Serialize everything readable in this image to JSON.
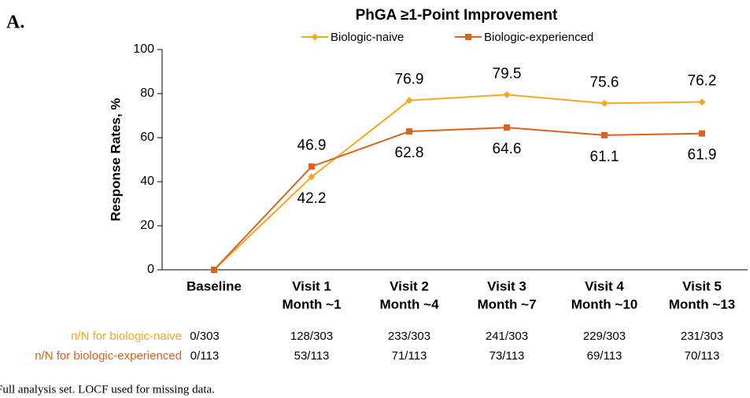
{
  "panel_label": "A.",
  "chart_data": {
    "type": "line",
    "title": "PhGA ≥1-Point Improvement",
    "y_label": "Response Rates, %",
    "categories": [
      [
        "Baseline"
      ],
      [
        "Visit 1",
        "Month ~1"
      ],
      [
        "Visit 2",
        "Month ~4"
      ],
      [
        "Visit 3",
        "Month ~7"
      ],
      [
        "Visit 4",
        "Month ~10"
      ],
      [
        "Visit 5",
        "Month ~13"
      ]
    ],
    "series": [
      {
        "name": "Biologic-naive",
        "color": "#f5a623",
        "marker": "diamond",
        "values": [
          0,
          42.2,
          76.9,
          79.5,
          75.6,
          76.2
        ],
        "value_labels": [
          null,
          "42.2",
          "76.9",
          "79.5",
          "75.6",
          "76.2"
        ]
      },
      {
        "name": "Biologic-experienced",
        "color": "#d9621c",
        "marker": "square",
        "values": [
          0,
          46.9,
          62.8,
          64.6,
          61.1,
          61.9
        ],
        "value_labels": [
          null,
          "46.9",
          "62.8",
          "64.6",
          "61.1",
          "61.9"
        ]
      }
    ],
    "ylim": [
      0,
      100
    ],
    "yticks": [
      0,
      20,
      40,
      60,
      80,
      100
    ],
    "legend": "top",
    "count_rows": [
      {
        "label": "n/N for biologic-naive",
        "color": "#f5a623",
        "values": [
          "0/303",
          "128/303",
          "233/303",
          "241/303",
          "229/303",
          "231/303"
        ]
      },
      {
        "label": "n/N for biologic-experienced",
        "color": "#d9621c",
        "values": [
          "0/113",
          "53/113",
          "71/113",
          "73/113",
          "69/113",
          "70/113"
        ]
      }
    ]
  },
  "footnote": "Full analysis set. LOCF used for missing data."
}
